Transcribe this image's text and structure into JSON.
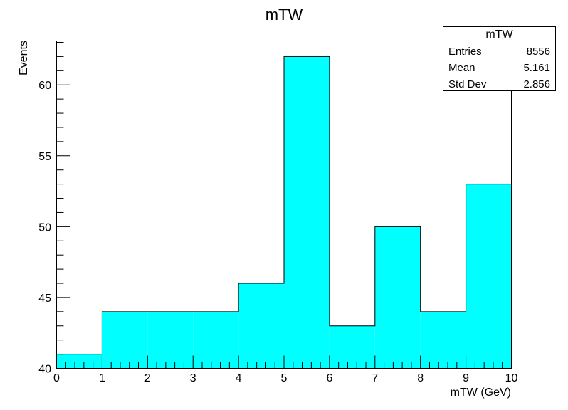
{
  "chart_data": {
    "type": "bar",
    "title": "mTW",
    "xlabel": "mTW (GeV)",
    "ylabel": "Events",
    "bin_edges": [
      0,
      1,
      2,
      3,
      4,
      5,
      6,
      7,
      8,
      9,
      10
    ],
    "values": [
      41,
      44,
      44,
      44,
      46,
      62,
      43,
      50,
      44,
      53
    ],
    "xlim": [
      0,
      10
    ],
    "ylim": [
      40,
      63.1
    ],
    "x_ticks": [
      "0",
      "1",
      "2",
      "3",
      "4",
      "5",
      "6",
      "7",
      "8",
      "9",
      "10"
    ],
    "y_ticks": [
      "40",
      "45",
      "50",
      "55",
      "60"
    ],
    "fill_color": "#00ffff",
    "grid": false,
    "legend": "top-right"
  },
  "stats": {
    "title": "mTW",
    "rows": [
      {
        "label": "Entries",
        "value": "8556"
      },
      {
        "label": "Mean",
        "value": "5.161"
      },
      {
        "label": "Std Dev",
        "value": "2.856"
      }
    ]
  }
}
